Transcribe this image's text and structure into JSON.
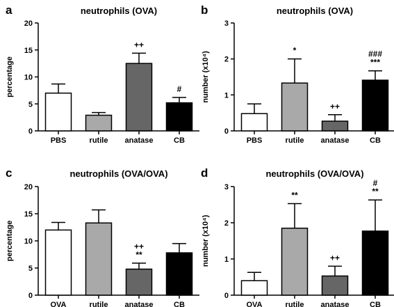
{
  "chart_data": [
    {
      "panel": "a",
      "type": "bar",
      "title": "neutrophils (OVA)",
      "ylabel": "percentage",
      "xlabel": "",
      "ylim": [
        0,
        20
      ],
      "yticks": [
        "0",
        "5",
        "10",
        "15",
        "20"
      ],
      "categories": [
        "PBS",
        "rutile",
        "anatase",
        "CB"
      ],
      "values": [
        7.0,
        2.9,
        12.5,
        5.2
      ],
      "errors": [
        1.7,
        0.5,
        1.9,
        1.0
      ],
      "annotations": [
        "",
        "",
        "++",
        "#"
      ],
      "colors": [
        "#ffffff",
        "#a9a9a9",
        "#666666",
        "#000000"
      ]
    },
    {
      "panel": "b",
      "type": "bar",
      "title": "neutrophils (OVA)",
      "ylabel": "number (x10⁴)",
      "xlabel": "",
      "ylim": [
        0,
        3
      ],
      "yticks": [
        "0",
        "1",
        "2",
        "3"
      ],
      "categories": [
        "PBS",
        "rutile",
        "anatase",
        "CB"
      ],
      "values": [
        0.48,
        1.33,
        0.27,
        1.41
      ],
      "errors": [
        0.27,
        0.67,
        0.18,
        0.26
      ],
      "annotations": [
        "",
        "*",
        "++",
        "###\n***"
      ],
      "colors": [
        "#ffffff",
        "#a9a9a9",
        "#666666",
        "#000000"
      ]
    },
    {
      "panel": "c",
      "type": "bar",
      "title": "neutrophils (OVA/OVA)",
      "ylabel": "percentage",
      "xlabel": "",
      "ylim": [
        0,
        20
      ],
      "yticks": [
        "0",
        "5",
        "10",
        "15",
        "20"
      ],
      "categories": [
        "OVA",
        "rutile",
        "anatase",
        "CB"
      ],
      "values": [
        12.0,
        13.3,
        4.8,
        7.8
      ],
      "errors": [
        1.4,
        2.4,
        1.1,
        1.7
      ],
      "annotations": [
        "",
        "",
        "++\n**",
        ""
      ],
      "colors": [
        "#ffffff",
        "#a9a9a9",
        "#666666",
        "#000000"
      ]
    },
    {
      "panel": "d",
      "type": "bar",
      "title": "neutrophils (OVA/OVA)",
      "ylabel": "number (x10⁴)",
      "xlabel": "",
      "ylim": [
        0,
        3
      ],
      "yticks": [
        "0",
        "1",
        "2",
        "3"
      ],
      "categories": [
        "OVA",
        "rutile",
        "anatase",
        "CB"
      ],
      "values": [
        0.4,
        1.85,
        0.53,
        1.77
      ],
      "errors": [
        0.23,
        0.68,
        0.27,
        0.86
      ],
      "annotations": [
        "",
        "**",
        "++",
        "#\n**"
      ],
      "colors": [
        "#ffffff",
        "#a9a9a9",
        "#666666",
        "#000000"
      ]
    }
  ]
}
